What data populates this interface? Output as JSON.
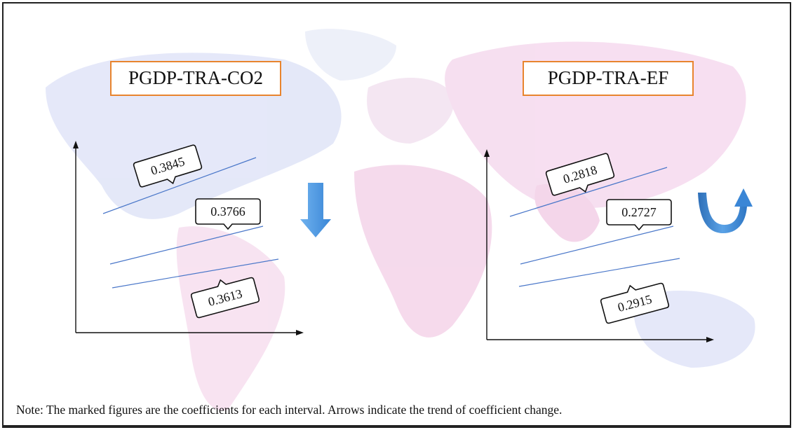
{
  "panels": [
    {
      "title": "PGDP-TRA-CO2",
      "coefficients": [
        "0.3845",
        "0.3766",
        "0.3613"
      ],
      "trend": "down"
    },
    {
      "title": "PGDP-TRA-EF",
      "coefficients": [
        "0.2818",
        "0.2727",
        "0.2915"
      ],
      "trend": "u-turn-up"
    }
  ],
  "note": "Note: The marked figures are the coefficients for each interval. Arrows indicate the trend of coefficient change.",
  "colors": {
    "title_border": "#e8842e",
    "interval_line": "#4a77c9",
    "trend_arrow": "#4a90d9",
    "map_blue": "#dfe4f7",
    "map_pink": "#f6dcef"
  }
}
